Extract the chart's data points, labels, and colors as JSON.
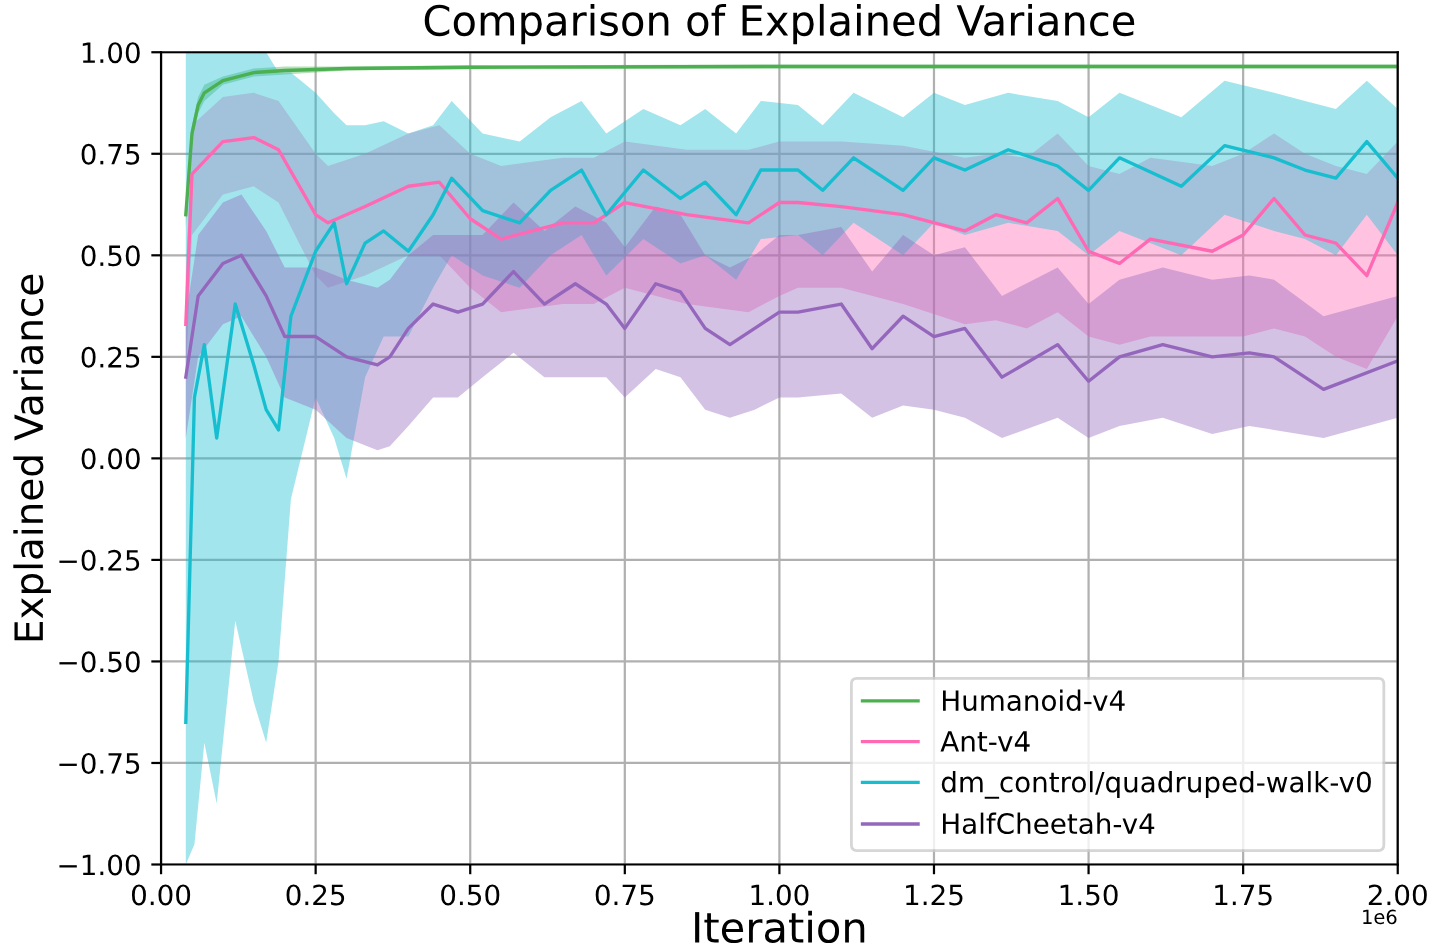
{
  "chart_data": {
    "type": "line",
    "title": "Comparison of Explained Variance",
    "xlabel": "Iteration",
    "ylabel": "Explained Variance",
    "annotations": [
      "1e6"
    ],
    "xlim": [
      0,
      2
    ],
    "ylim": [
      -1,
      1
    ],
    "xticks": [
      {
        "value": 0,
        "label": "0.00"
      },
      0.25,
      {
        "value": 0.5,
        "label": "0.50"
      },
      0.75,
      {
        "value": 1,
        "label": "1.00"
      },
      1.25,
      {
        "value": 1.5,
        "label": "1.50"
      },
      1.75,
      {
        "value": 2,
        "label": "2.00"
      }
    ],
    "yticks": [
      {
        "value": -1,
        "label": "−1.00"
      },
      {
        "value": -0.75,
        "label": "−0.75"
      },
      {
        "value": -0.5,
        "label": "−0.50"
      },
      {
        "value": -0.25,
        "label": "−0.25"
      },
      {
        "value": 0,
        "label": "0.00"
      },
      {
        "value": 0.25,
        "label": "0.25"
      },
      {
        "value": 0.5,
        "label": "0.50"
      },
      {
        "value": 0.75,
        "label": "0.75"
      },
      {
        "value": 1,
        "label": "1.00"
      }
    ],
    "grid": true,
    "legend": "bottom right",
    "series": [
      {
        "name": "Humanoid-v4",
        "color": "#4caf50",
        "x": [
          0.04,
          0.05,
          0.06,
          0.07,
          0.1,
          0.15,
          0.2,
          0.3,
          0.5,
          1,
          1.5,
          2
        ],
        "values": [
          0.6,
          0.8,
          0.87,
          0.9,
          0.93,
          0.95,
          0.955,
          0.96,
          0.963,
          0.965,
          0.965,
          0.965
        ],
        "lower": [
          0.57,
          0.78,
          0.85,
          0.88,
          0.92,
          0.94,
          0.945,
          0.955,
          0.958,
          0.96,
          0.96,
          0.96
        ],
        "upper": [
          0.63,
          0.82,
          0.89,
          0.92,
          0.94,
          0.96,
          0.965,
          0.965,
          0.968,
          0.97,
          0.97,
          0.97
        ]
      },
      {
        "name": "Ant-v4",
        "color": "#ff69b4",
        "x": [
          0.04,
          0.05,
          0.1,
          0.15,
          0.19,
          0.25,
          0.27,
          0.33,
          0.4,
          0.45,
          0.5,
          0.55,
          0.65,
          0.7,
          0.75,
          0.85,
          0.95,
          1,
          1.03,
          1.1,
          1.2,
          1.3,
          1.35,
          1.4,
          1.45,
          1.5,
          1.55,
          1.6,
          1.7,
          1.75,
          1.8,
          1.85,
          1.9,
          1.95,
          2
        ],
        "values": [
          0.33,
          0.7,
          0.78,
          0.79,
          0.76,
          0.6,
          0.58,
          0.62,
          0.67,
          0.68,
          0.59,
          0.54,
          0.58,
          0.58,
          0.63,
          0.6,
          0.58,
          0.63,
          0.63,
          0.62,
          0.6,
          0.56,
          0.6,
          0.58,
          0.64,
          0.51,
          0.48,
          0.54,
          0.51,
          0.55,
          0.64,
          0.55,
          0.53,
          0.45,
          0.63
        ],
        "lower": [
          0.2,
          0.55,
          0.65,
          0.67,
          0.63,
          0.45,
          0.42,
          0.45,
          0.5,
          0.5,
          0.42,
          0.36,
          0.38,
          0.38,
          0.42,
          0.38,
          0.36,
          0.4,
          0.42,
          0.42,
          0.38,
          0.33,
          0.34,
          0.32,
          0.36,
          0.3,
          0.28,
          0.3,
          0.3,
          0.3,
          0.32,
          0.3,
          0.25,
          0.22,
          0.35
        ],
        "upper": [
          0.45,
          0.82,
          0.89,
          0.9,
          0.88,
          0.75,
          0.72,
          0.75,
          0.8,
          0.82,
          0.75,
          0.72,
          0.74,
          0.74,
          0.78,
          0.76,
          0.76,
          0.78,
          0.78,
          0.78,
          0.77,
          0.74,
          0.75,
          0.74,
          0.8,
          0.72,
          0.7,
          0.74,
          0.72,
          0.75,
          0.8,
          0.75,
          0.72,
          0.7,
          0.78
        ]
      },
      {
        "name": "dm_control/quadruped-walk-v0",
        "color": "#17becf",
        "x": [
          0.04,
          0.054,
          0.07,
          0.09,
          0.12,
          0.15,
          0.17,
          0.19,
          0.21,
          0.25,
          0.28,
          0.3,
          0.33,
          0.36,
          0.4,
          0.44,
          0.47,
          0.52,
          0.58,
          0.63,
          0.68,
          0.72,
          0.78,
          0.84,
          0.88,
          0.93,
          0.97,
          1.03,
          1.07,
          1.12,
          1.2,
          1.25,
          1.3,
          1.37,
          1.45,
          1.5,
          1.55,
          1.65,
          1.72,
          1.8,
          1.85,
          1.9,
          1.95,
          2
        ],
        "values": [
          -0.65,
          0.15,
          0.28,
          0.05,
          0.38,
          0.23,
          0.12,
          0.07,
          0.35,
          0.51,
          0.58,
          0.43,
          0.53,
          0.56,
          0.51,
          0.6,
          0.69,
          0.61,
          0.58,
          0.66,
          0.71,
          0.6,
          0.71,
          0.64,
          0.68,
          0.6,
          0.71,
          0.71,
          0.66,
          0.74,
          0.66,
          0.74,
          0.71,
          0.76,
          0.72,
          0.66,
          0.74,
          0.67,
          0.77,
          0.74,
          0.71,
          0.69,
          0.78,
          0.69
        ],
        "lower": [
          -1,
          -0.95,
          -0.7,
          -0.85,
          -0.4,
          -0.6,
          -0.7,
          -0.5,
          -0.1,
          0.15,
          0.05,
          -0.05,
          0.2,
          0.3,
          0.3,
          0.42,
          0.5,
          0.45,
          0.42,
          0.5,
          0.55,
          0.45,
          0.54,
          0.48,
          0.5,
          0.44,
          0.54,
          0.55,
          0.5,
          0.58,
          0.5,
          0.58,
          0.55,
          0.58,
          0.56,
          0.5,
          0.56,
          0.5,
          0.6,
          0.56,
          0.54,
          0.5,
          0.6,
          0.5
        ],
        "upper": [
          1,
          1,
          1,
          1,
          1,
          1,
          1,
          0.95,
          0.95,
          0.9,
          0.85,
          0.82,
          0.82,
          0.83,
          0.8,
          0.82,
          0.88,
          0.8,
          0.78,
          0.84,
          0.88,
          0.8,
          0.86,
          0.82,
          0.86,
          0.8,
          0.88,
          0.87,
          0.82,
          0.9,
          0.84,
          0.9,
          0.87,
          0.9,
          0.88,
          0.84,
          0.9,
          0.84,
          0.93,
          0.9,
          0.88,
          0.86,
          0.93,
          0.86
        ]
      },
      {
        "name": "HalfCheetah-v4",
        "color": "#9467bd",
        "x": [
          0.04,
          0.06,
          0.1,
          0.13,
          0.17,
          0.2,
          0.25,
          0.3,
          0.35,
          0.37,
          0.4,
          0.44,
          0.48,
          0.52,
          0.57,
          0.62,
          0.67,
          0.72,
          0.75,
          0.8,
          0.84,
          0.88,
          0.92,
          0.96,
          1,
          1.03,
          1.1,
          1.15,
          1.2,
          1.25,
          1.3,
          1.36,
          1.45,
          1.5,
          1.55,
          1.62,
          1.7,
          1.76,
          1.8,
          1.88,
          2
        ],
        "values": [
          0.2,
          0.4,
          0.48,
          0.5,
          0.4,
          0.3,
          0.3,
          0.25,
          0.23,
          0.25,
          0.32,
          0.38,
          0.36,
          0.38,
          0.46,
          0.38,
          0.43,
          0.38,
          0.32,
          0.43,
          0.41,
          0.32,
          0.28,
          0.32,
          0.36,
          0.36,
          0.38,
          0.27,
          0.35,
          0.3,
          0.32,
          0.2,
          0.28,
          0.19,
          0.25,
          0.28,
          0.25,
          0.26,
          0.25,
          0.17,
          0.24
        ],
        "lower": [
          0.05,
          0.25,
          0.33,
          0.35,
          0.25,
          0.15,
          0.12,
          0.05,
          0.02,
          0.03,
          0.08,
          0.15,
          0.15,
          0.2,
          0.26,
          0.2,
          0.2,
          0.2,
          0.15,
          0.22,
          0.2,
          0.12,
          0.1,
          0.12,
          0.15,
          0.15,
          0.16,
          0.1,
          0.13,
          0.12,
          0.1,
          0.05,
          0.1,
          0.05,
          0.08,
          0.1,
          0.06,
          0.08,
          0.07,
          0.05,
          0.1
        ],
        "upper": [
          0.35,
          0.55,
          0.63,
          0.65,
          0.56,
          0.47,
          0.47,
          0.44,
          0.42,
          0.44,
          0.5,
          0.55,
          0.55,
          0.55,
          0.63,
          0.56,
          0.62,
          0.58,
          0.52,
          0.62,
          0.6,
          0.5,
          0.47,
          0.5,
          0.55,
          0.55,
          0.57,
          0.46,
          0.55,
          0.5,
          0.52,
          0.4,
          0.47,
          0.38,
          0.44,
          0.47,
          0.44,
          0.45,
          0.44,
          0.35,
          0.4
        ]
      }
    ]
  }
}
